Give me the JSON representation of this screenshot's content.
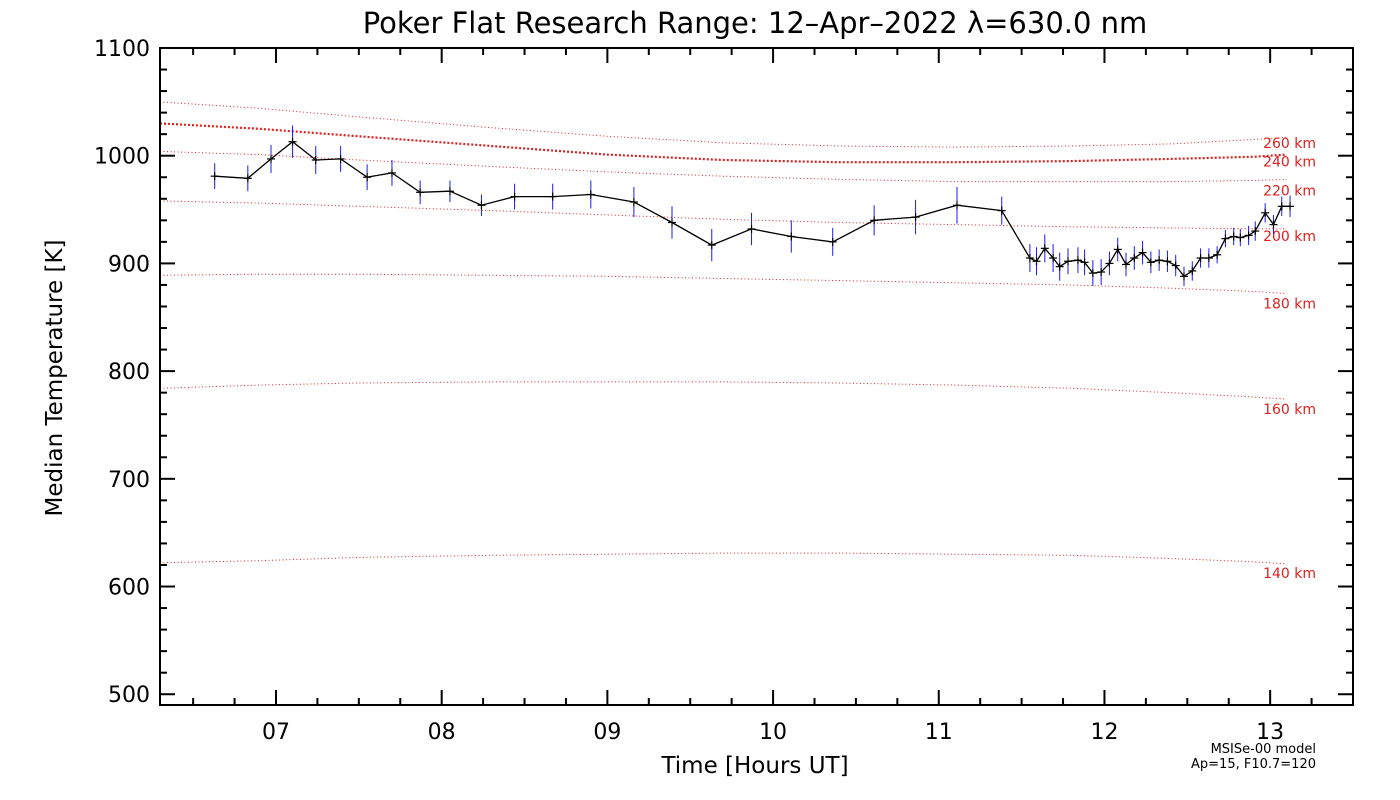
{
  "chart_data": {
    "type": "line",
    "title": "Poker Flat Research Range: 12–Apr–2022 λ=630.0 nm",
    "xlabel": "Time [Hours UT]",
    "ylabel": "Median Temperature [K]",
    "xlim": [
      6.3,
      13.5
    ],
    "ylim": [
      490,
      1100
    ],
    "x_ticks": [
      7,
      8,
      9,
      10,
      11,
      12,
      13
    ],
    "x_tick_labels": [
      "07",
      "08",
      "09",
      "10",
      "11",
      "12",
      "13"
    ],
    "y_ticks": [
      500,
      600,
      700,
      800,
      900,
      1000,
      1100
    ],
    "y_tick_labels": [
      "500",
      "600",
      "700",
      "800",
      "900",
      "1000",
      "1100"
    ],
    "grid": false,
    "line_color": "#000000",
    "error_bar_color": "#1a1aff",
    "model_color": "#e02020",
    "series": [
      {
        "name": "Median Temperature",
        "x": [
          6.63,
          6.83,
          6.97,
          7.1,
          7.24,
          7.39,
          7.55,
          7.7,
          7.87,
          8.05,
          8.24,
          8.44,
          8.67,
          8.9,
          9.16,
          9.39,
          9.63,
          9.87,
          10.11,
          10.36,
          10.61,
          10.86,
          11.11,
          11.38,
          11.55,
          11.59,
          11.64,
          11.69,
          11.73,
          11.78,
          11.84,
          11.88,
          11.93,
          11.98,
          12.03,
          12.08,
          12.13,
          12.18,
          12.23,
          12.28,
          12.33,
          12.38,
          12.43,
          12.48,
          12.53,
          12.58,
          12.63,
          12.68,
          12.73,
          12.78,
          12.82,
          12.87,
          12.91,
          12.97,
          13.02,
          13.07,
          13.12
        ],
        "values": [
          981,
          979,
          997,
          1013,
          996,
          997,
          980,
          984,
          966,
          967,
          954,
          962,
          962,
          964,
          957,
          938,
          917,
          932,
          925,
          920,
          940,
          943,
          954,
          949,
          905,
          902,
          914,
          905,
          897,
          902,
          903,
          901,
          891,
          892,
          900,
          913,
          899,
          905,
          910,
          901,
          903,
          902,
          898,
          888,
          893,
          905,
          905,
          908,
          923,
          925,
          924,
          926,
          930,
          947,
          936,
          953,
          953
        ],
        "errors": [
          12,
          12,
          13,
          15,
          13,
          12,
          12,
          12,
          11,
          10,
          10,
          12,
          12,
          13,
          14,
          15,
          15,
          15,
          15,
          13,
          14,
          16,
          17,
          13,
          13,
          13,
          13,
          13,
          13,
          12,
          12,
          12,
          12,
          12,
          11,
          11,
          11,
          11,
          11,
          10,
          10,
          10,
          10,
          9,
          9,
          9,
          9,
          8,
          8,
          8,
          8,
          9,
          9,
          9,
          9,
          9,
          10
        ]
      }
    ],
    "model_curves": [
      {
        "label": "140 km",
        "x": [
          6.3,
          6.9,
          7.5,
          8.3,
          9.0,
          9.7,
          10.4,
          11.1,
          11.8,
          12.4,
          12.9,
          13.1
        ],
        "values": [
          622,
          624,
          627,
          629,
          630,
          631,
          631,
          630,
          629,
          626,
          623,
          621
        ],
        "label_value": 608
      },
      {
        "label": "160 km",
        "x": [
          6.3,
          6.9,
          7.5,
          8.3,
          9.0,
          9.7,
          10.4,
          11.1,
          11.8,
          12.4,
          12.9,
          13.1
        ],
        "values": [
          784,
          787,
          789,
          790,
          790,
          790,
          789,
          787,
          784,
          780,
          776,
          774
        ],
        "label_value": 760
      },
      {
        "label": "180 km",
        "x": [
          6.3,
          6.9,
          7.5,
          8.3,
          9.0,
          9.7,
          10.4,
          11.1,
          11.8,
          12.4,
          12.9,
          13.1
        ],
        "values": [
          889,
          890,
          890,
          889,
          888,
          886,
          884,
          882,
          880,
          877,
          874,
          872
        ],
        "label_value": 858
      },
      {
        "label": "200 km",
        "x": [
          6.3,
          6.9,
          7.5,
          8.3,
          9.0,
          9.7,
          10.4,
          11.1,
          11.8,
          12.4,
          12.9,
          13.1
        ],
        "values": [
          958,
          956,
          953,
          949,
          945,
          941,
          938,
          936,
          934,
          933,
          932,
          932
        ],
        "label_value": 921
      },
      {
        "label": "220 km",
        "x": [
          6.3,
          6.9,
          7.5,
          8.3,
          9.0,
          9.7,
          10.4,
          11.1,
          11.8,
          12.4,
          12.9,
          13.1
        ],
        "values": [
          1004,
          1001,
          996,
          990,
          985,
          981,
          978,
          976,
          976,
          976,
          977,
          978
        ],
        "label_value": 963
      },
      {
        "label": "240 km",
        "x": [
          6.3,
          6.9,
          7.5,
          8.3,
          9.0,
          9.7,
          10.4,
          11.1,
          11.8,
          12.4,
          12.9,
          13.1
        ],
        "values": [
          1030,
          1025,
          1018,
          1009,
          1001,
          996,
          994,
          994,
          995,
          997,
          999,
          1001
        ],
        "label_value": 990
      },
      {
        "label": "260 km",
        "x": [
          6.3,
          6.9,
          7.5,
          8.3,
          9.0,
          9.7,
          10.4,
          11.1,
          11.8,
          12.4,
          12.9,
          13.1
        ],
        "values": [
          1050,
          1044,
          1036,
          1026,
          1018,
          1012,
          1009,
          1008,
          1009,
          1011,
          1015,
          1017
        ],
        "label_value": 1007
      }
    ],
    "model_note": [
      "MSISe-00 model",
      "Ap=15, F10.7=120"
    ]
  }
}
